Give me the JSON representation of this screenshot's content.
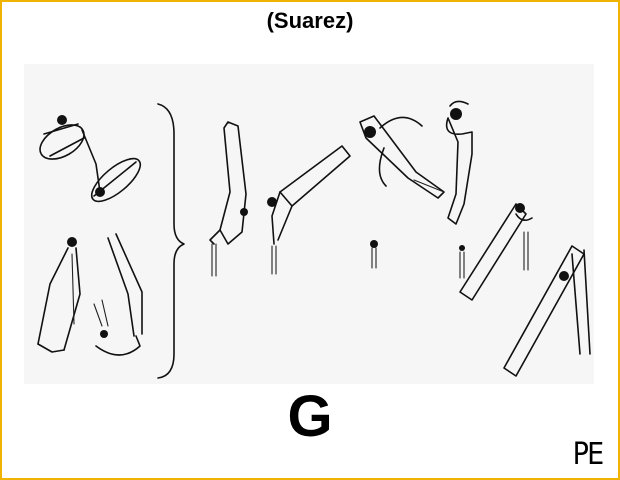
{
  "header": {
    "title": "(Suarez)"
  },
  "element": {
    "value": "G"
  },
  "corner": {
    "event": "PE"
  },
  "colors": {
    "border": "#f0b400",
    "figure_bg": "#f6f6f6",
    "ink": "#111111"
  }
}
